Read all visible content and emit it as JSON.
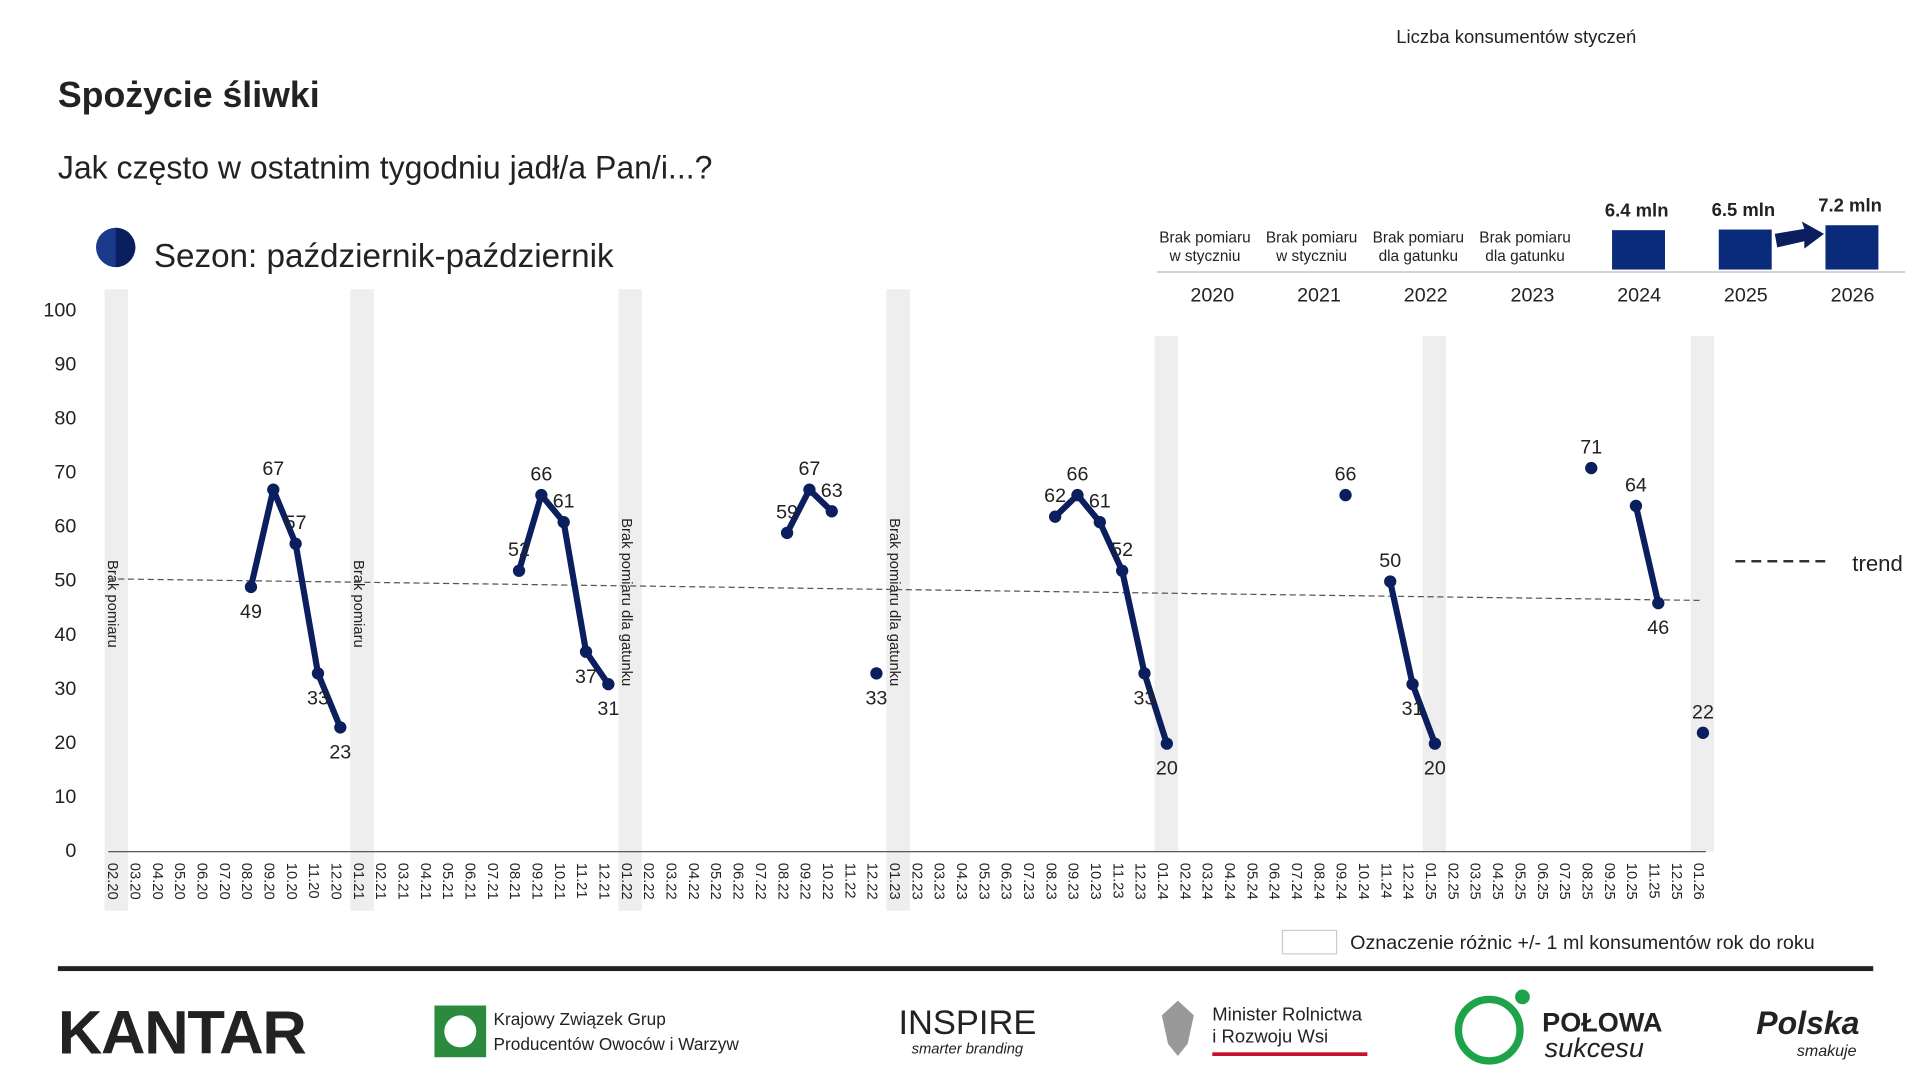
{
  "header": {
    "title": "Spożycie śliwki",
    "question": "Jak często w ostatnim tygodniu jadł/a Pan/i...?",
    "season": "Sezon: październik-październik"
  },
  "chart_data": [
    {
      "type": "line",
      "categories": [
        "02.20",
        "03.20",
        "04.20",
        "05.20",
        "06.20",
        "07.20",
        "08.20",
        "09.20",
        "10.20",
        "11.20",
        "12.20",
        "01.21",
        "02.21",
        "03.21",
        "04.21",
        "05.21",
        "06.21",
        "07.21",
        "08.21",
        "09.21",
        "10.21",
        "11.21",
        "12.21",
        "01.22",
        "02.22",
        "03.22",
        "04.22",
        "05.22",
        "06.22",
        "07.22",
        "08.22",
        "09.22",
        "10.22",
        "11.22",
        "12.22",
        "01.23",
        "02.23",
        "03.23",
        "04.23",
        "05.23",
        "06.23",
        "07.23",
        "08.23",
        "09.23",
        "10.23",
        "11.23",
        "12.23",
        "01.24",
        "02.24",
        "03.24",
        "04.24",
        "05.24",
        "06.24",
        "07.24",
        "08.24",
        "09.24",
        "10.24",
        "11.24",
        "12.24",
        "01.25",
        "02.25",
        "03.25",
        "04.25",
        "05.25",
        "06.25",
        "07.25",
        "08.25",
        "09.25",
        "10.25",
        "11.25",
        "12.25",
        "01.26"
      ],
      "series": [
        {
          "color": "#0b1f5e",
          "values": [
            null,
            null,
            null,
            null,
            null,
            null,
            49,
            67,
            57,
            33,
            23,
            null,
            null,
            null,
            null,
            null,
            null,
            null,
            52,
            66,
            61,
            37,
            31,
            null,
            null,
            null,
            null,
            null,
            null,
            null,
            59,
            67,
            63,
            null,
            33,
            null,
            null,
            null,
            null,
            null,
            null,
            null,
            62,
            66,
            61,
            52,
            33,
            20,
            null,
            null,
            null,
            null,
            null,
            null,
            null,
            66,
            null,
            50,
            31,
            20,
            null,
            null,
            null,
            null,
            null,
            null,
            71,
            null,
            64,
            46,
            null,
            22
          ]
        }
      ],
      "ylim": [
        0,
        100
      ],
      "yticks": [
        0,
        10,
        20,
        30,
        40,
        50,
        60,
        70,
        80,
        90,
        100
      ],
      "grid": false,
      "bands": [
        {
          "category": "02.20",
          "label": "Brak pomiaru"
        },
        {
          "category": "01.21",
          "label": "Brak pomiaru"
        },
        {
          "category": "01.22",
          "label": "Brak pomiaru dla gatunku"
        },
        {
          "category": "01.23",
          "label": "Brak pomiaru dla gatunku"
        },
        {
          "category": "01.24"
        },
        {
          "category": "01.25"
        },
        {
          "category": "01.26"
        }
      ],
      "trend": {
        "label": "trend",
        "values": [
          50.5,
          46.5
        ],
        "color": "#555555"
      }
    },
    {
      "type": "bar",
      "title": "Liczba konsumentów styczeń",
      "categories": [
        "2020",
        "2021",
        "2022",
        "2023",
        "2024",
        "2025",
        "2026"
      ],
      "notes": [
        [
          "Brak pomiaru",
          "w styczniu"
        ],
        [
          "Brak pomiaru",
          "w styczniu"
        ],
        [
          "Brak pomiaru",
          "dla gatunku"
        ],
        [
          "Brak pomiaru",
          "dla gatunku"
        ],
        null,
        null,
        null
      ],
      "values": [
        null,
        null,
        null,
        null,
        6.4,
        6.5,
        7.2
      ],
      "value_labels": [
        null,
        null,
        null,
        null,
        "6.4 mln",
        "6.5 mln",
        "7.2 mln"
      ],
      "color": "#0a2a7a",
      "ylim": [
        0,
        8
      ]
    }
  ],
  "legend_note": "Oznaczenie różnic +/- 1 ml konsumentów rok do roku",
  "footer": {
    "kantar": "KANTAR",
    "kzgpow": [
      "Krajowy Związek Grup",
      "Producentów Owoców i Warzyw"
    ],
    "inspire": [
      "INSPIRE",
      "smarter branding"
    ],
    "minister": [
      "Minister Rolnictwa",
      "i Rozwoju Wsi"
    ],
    "polowa": [
      "POŁOWA",
      "sukcesu"
    ],
    "polska": [
      "Polska",
      "smakuje"
    ]
  }
}
